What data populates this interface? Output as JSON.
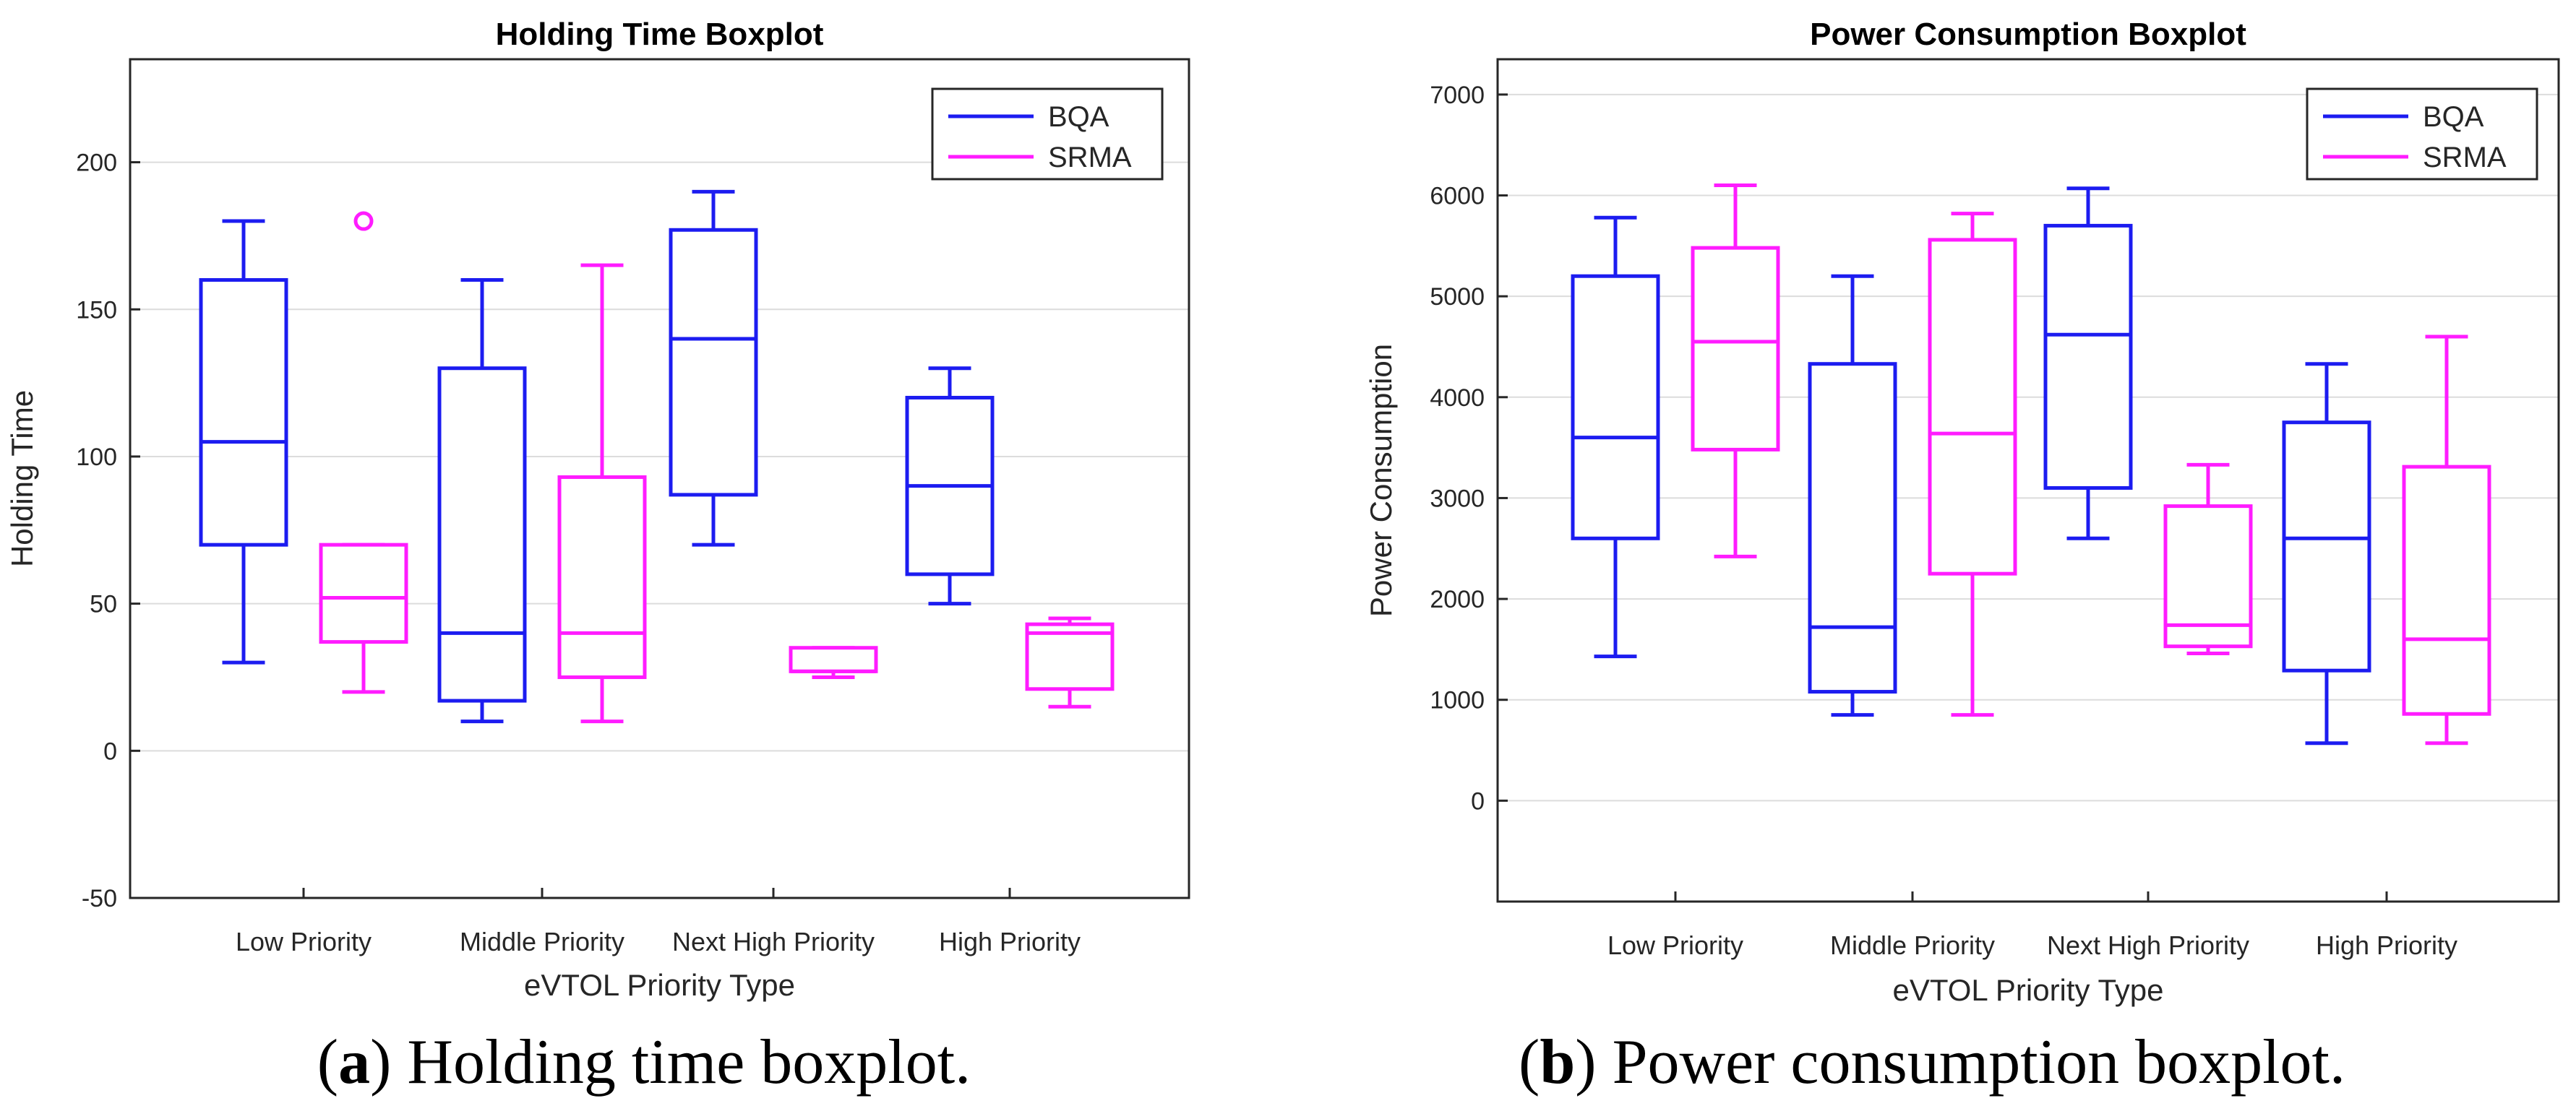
{
  "chart_data": [
    {
      "type": "boxplot",
      "title": "Holding Time Boxplot",
      "xlabel": "eVTOL Priority Type",
      "ylabel": "Holding Time",
      "ylim": [
        -50,
        235
      ],
      "yticks": [
        -50,
        0,
        50,
        100,
        150,
        200
      ],
      "grid": true,
      "legend_position": "top-right",
      "categories": [
        "Low Priority",
        "Middle Priority",
        "Next High Priority",
        "High Priority"
      ],
      "series": [
        {
          "name": "BQA",
          "color": "#1c1cf0",
          "boxes": [
            {
              "whisker_low": 30,
              "q1": 70,
              "median": 105,
              "q3": 160,
              "whisker_high": 180,
              "outliers": []
            },
            {
              "whisker_low": 10,
              "q1": 17,
              "median": 40,
              "q3": 130,
              "whisker_high": 160,
              "outliers": []
            },
            {
              "whisker_low": 70,
              "q1": 87,
              "median": 140,
              "q3": 177,
              "whisker_high": 190,
              "outliers": []
            },
            {
              "whisker_low": 50,
              "q1": 60,
              "median": 90,
              "q3": 120,
              "whisker_high": 130,
              "outliers": []
            }
          ]
        },
        {
          "name": "SRMA",
          "color": "#ff1cff",
          "boxes": [
            {
              "whisker_low": 20,
              "q1": 37,
              "median": 52,
              "q3": 70,
              "whisker_high": 70,
              "outliers": [
                180
              ]
            },
            {
              "whisker_low": 10,
              "q1": 25,
              "median": 40,
              "q3": 93,
              "whisker_high": 165,
              "outliers": []
            },
            {
              "whisker_low": 25,
              "q1": 27,
              "median": 27,
              "q3": 35,
              "whisker_high": 35,
              "outliers": []
            },
            {
              "whisker_low": 15,
              "q1": 21,
              "median": 40,
              "q3": 43,
              "whisker_high": 45,
              "outliers": []
            }
          ]
        }
      ]
    },
    {
      "type": "boxplot",
      "title": "Power Consumption Boxplot",
      "xlabel": "eVTOL Priority Type",
      "ylabel": "Power Consumption",
      "ylim": [
        -1000,
        7350
      ],
      "yticks": [
        0,
        1000,
        2000,
        3000,
        4000,
        5000,
        6000,
        7000
      ],
      "grid": true,
      "legend_position": "top-right",
      "categories": [
        "Low Priority",
        "Middle Priority",
        "Next High Priority",
        "High Priority"
      ],
      "series": [
        {
          "name": "BQA",
          "color": "#1c1cf0",
          "boxes": [
            {
              "whisker_low": 1430,
              "q1": 2600,
              "median": 3600,
              "q3": 5200,
              "whisker_high": 5780,
              "outliers": []
            },
            {
              "whisker_low": 850,
              "q1": 1080,
              "median": 1720,
              "q3": 4330,
              "whisker_high": 5200,
              "outliers": []
            },
            {
              "whisker_low": 2600,
              "q1": 3100,
              "median": 4620,
              "q3": 5700,
              "whisker_high": 6070,
              "outliers": []
            },
            {
              "whisker_low": 570,
              "q1": 1290,
              "median": 2600,
              "q3": 3750,
              "whisker_high": 4330,
              "outliers": []
            }
          ]
        },
        {
          "name": "SRMA",
          "color": "#ff1cff",
          "boxes": [
            {
              "whisker_low": 2420,
              "q1": 3480,
              "median": 4550,
              "q3": 5480,
              "whisker_high": 6100,
              "outliers": []
            },
            {
              "whisker_low": 850,
              "q1": 2250,
              "median": 3640,
              "q3": 5560,
              "whisker_high": 5820,
              "outliers": []
            },
            {
              "whisker_low": 1460,
              "q1": 1530,
              "median": 1740,
              "q3": 2920,
              "whisker_high": 3330,
              "outliers": []
            },
            {
              "whisker_low": 570,
              "q1": 860,
              "median": 1600,
              "q3": 3310,
              "whisker_high": 4600,
              "outliers": []
            }
          ]
        }
      ]
    }
  ],
  "captions": {
    "a": {
      "label": "a",
      "text": "Holding time boxplot."
    },
    "b": {
      "label": "b",
      "text": "Power consumption boxplot."
    }
  }
}
